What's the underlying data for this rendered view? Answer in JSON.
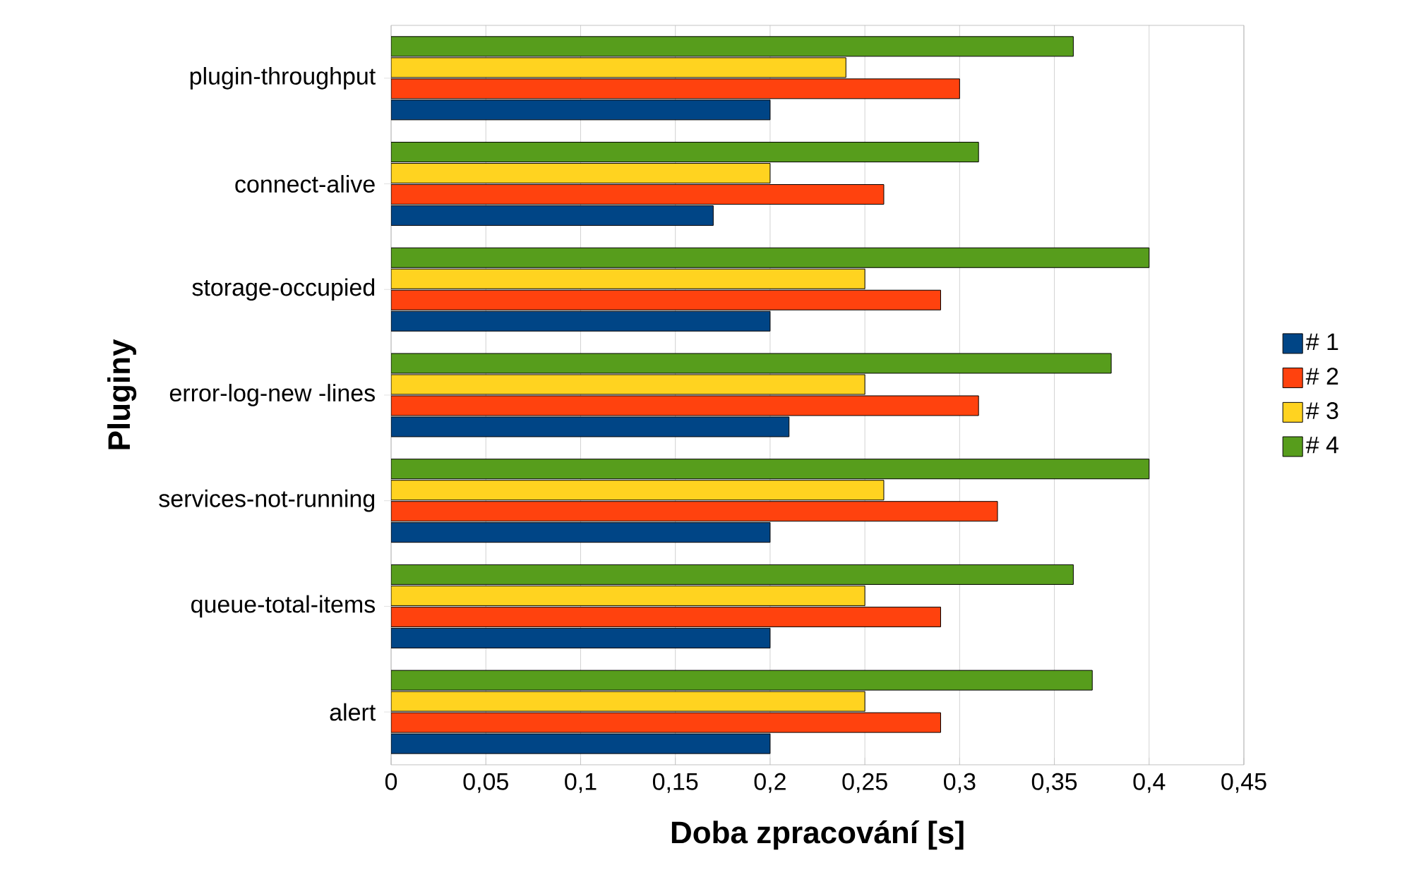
{
  "chart_data": {
    "type": "bar",
    "orientation": "horizontal",
    "xlabel": "Doba zpracování [s]",
    "ylabel": "Pluginy",
    "categories": [
      "plugin-throughput",
      "connect-alive",
      "storage-occupied",
      "error-log-new -lines",
      "services-not-running",
      "queue-total-items",
      "alert"
    ],
    "series": [
      {
        "name": "# 1",
        "color": "#004586",
        "values": [
          0.2,
          0.17,
          0.2,
          0.21,
          0.2,
          0.2,
          0.2
        ]
      },
      {
        "name": "# 2",
        "color": "#ff420e",
        "values": [
          0.3,
          0.26,
          0.29,
          0.31,
          0.32,
          0.29,
          0.29
        ]
      },
      {
        "name": "# 3",
        "color": "#ffd320",
        "values": [
          0.24,
          0.2,
          0.25,
          0.25,
          0.26,
          0.25,
          0.25
        ]
      },
      {
        "name": "# 4",
        "color": "#579d1c",
        "values": [
          0.36,
          0.31,
          0.4,
          0.38,
          0.4,
          0.36,
          0.37
        ]
      }
    ],
    "xlim": [
      0,
      0.45
    ],
    "xticks": [
      0,
      {
        "value": 0.05,
        "label": "0,05"
      },
      {
        "value": 0.1,
        "label": "0,1"
      },
      {
        "value": 0.15,
        "label": "0,15"
      },
      {
        "value": 0.2,
        "label": "0,2"
      },
      {
        "value": 0.25,
        "label": "0,25"
      },
      {
        "value": 0.3,
        "label": "0,3"
      },
      {
        "value": 0.35,
        "label": "0,35"
      },
      {
        "value": 0.4,
        "label": "0,4"
      },
      {
        "value": 0.45,
        "label": "0,45"
      }
    ],
    "grid": "x",
    "legend": "right"
  }
}
